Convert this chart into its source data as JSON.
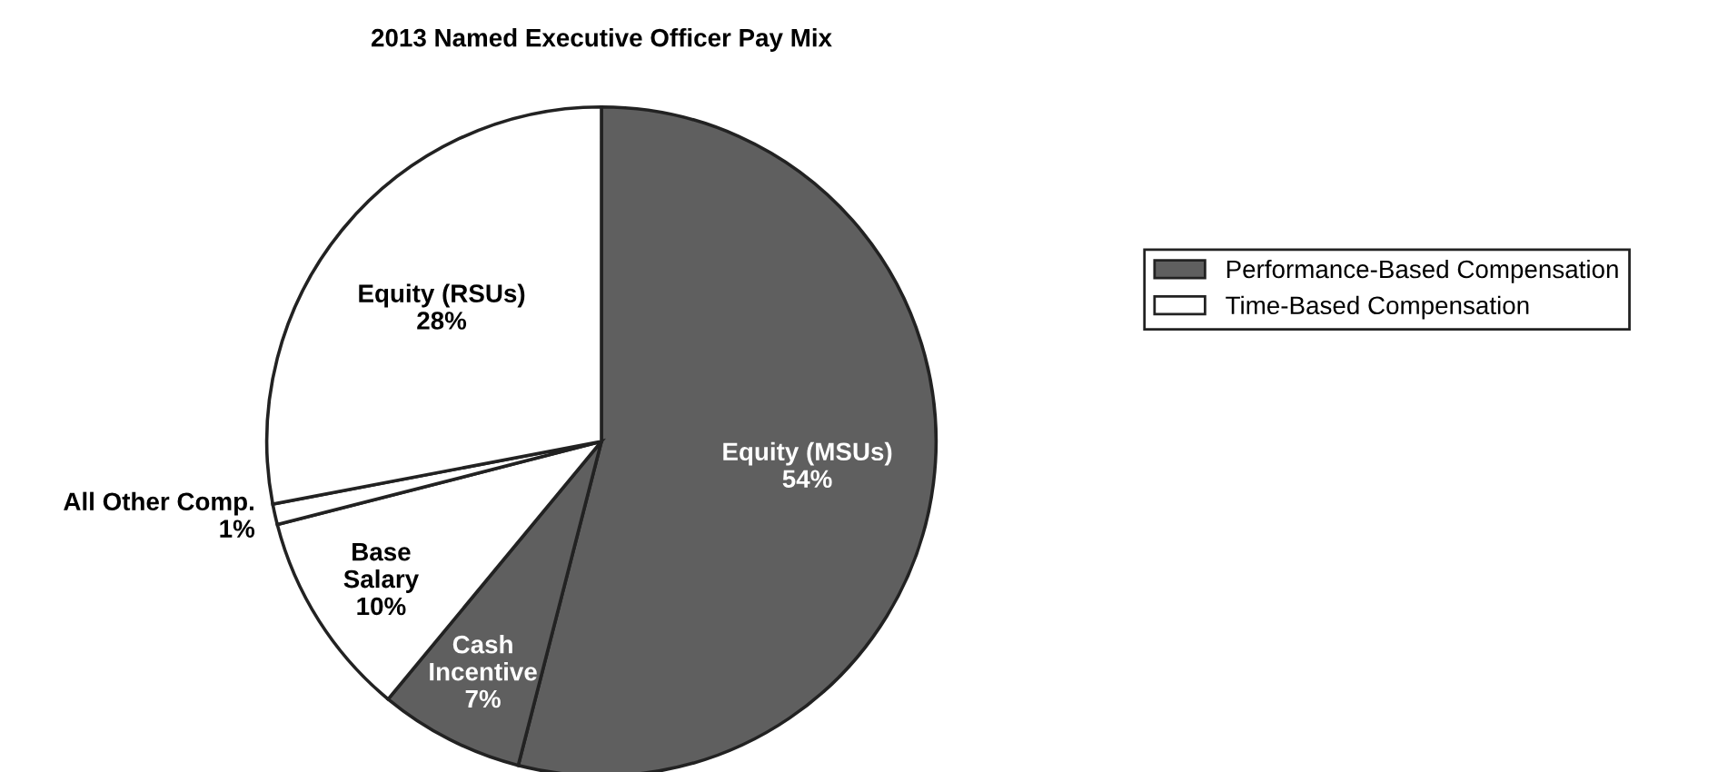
{
  "chart_data": {
    "type": "pie",
    "title": "2013 Named Executive Officer Pay Mix",
    "categories": [
      "Equity (MSUs)",
      "Cash Incentive",
      "Base Salary",
      "All Other Comp.",
      "Equity (RSUs)"
    ],
    "values": [
      54,
      7,
      10,
      1,
      28
    ],
    "value_labels": [
      "54%",
      "7%",
      "10%",
      "1%",
      "28%"
    ],
    "colors": [
      "#5f5f5f",
      "#5f5f5f",
      "#ffffff",
      "#ffffff",
      "#ffffff"
    ],
    "annotations": [
      "Performance-Based Compensation",
      "Time-Based Compensation"
    ]
  }
}
